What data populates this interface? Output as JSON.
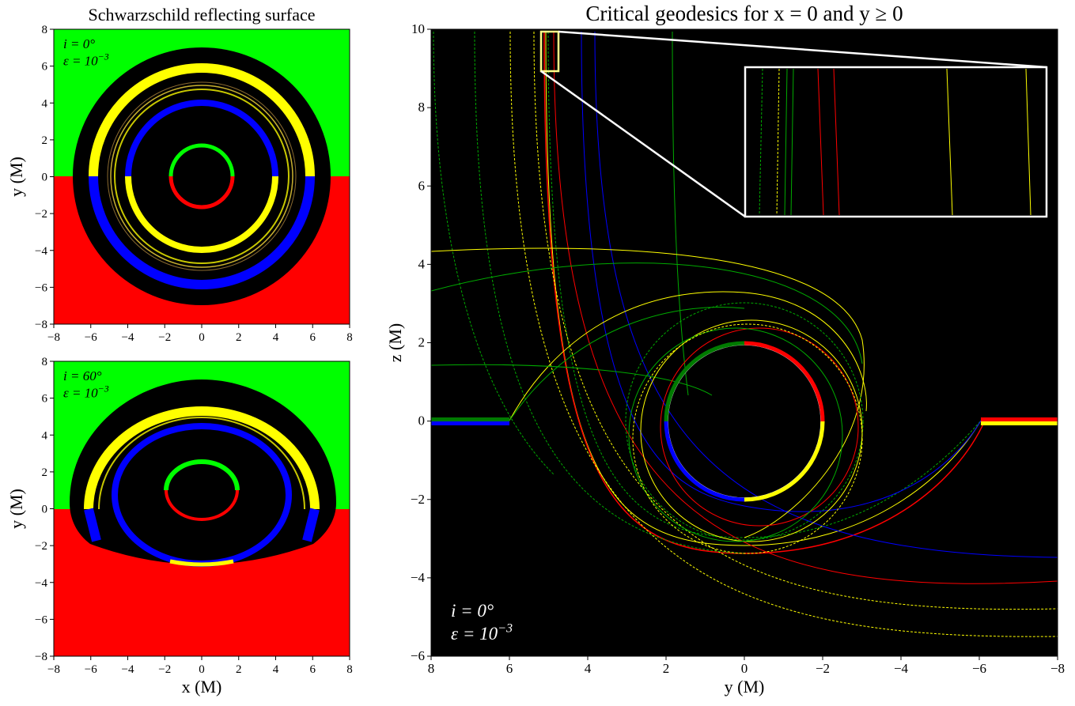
{
  "chart_data": [
    {
      "type": "shadow-map",
      "title": "Schwarzschild reflecting surface",
      "ylabel": "y (M)",
      "inclination": "i = 0°",
      "epsilon": "ε = 10",
      "epsilon_exponent": "−3",
      "xlim": [
        -8,
        8
      ],
      "ylim": [
        -8,
        8
      ],
      "xticks": [
        {
          "value": -8,
          "label": "−8"
        },
        {
          "value": -6,
          "label": "−6"
        },
        {
          "value": -4,
          "label": "−4"
        },
        {
          "value": -2,
          "label": "−2"
        },
        0,
        2,
        4,
        6,
        8
      ],
      "yticks": [
        {
          "value": -8,
          "label": "−8"
        },
        {
          "value": -6,
          "label": "−6"
        },
        {
          "value": -4,
          "label": "−4"
        },
        {
          "value": -2,
          "label": "−2"
        },
        0,
        2,
        4,
        6,
        8
      ]
    },
    {
      "type": "shadow-map",
      "xlabel": "x (M)",
      "ylabel": "y (M)",
      "inclination": "i = 60°",
      "epsilon": "ε = 10",
      "epsilon_exponent": "−3",
      "xlim": [
        -8,
        8
      ],
      "ylim": [
        -8,
        8
      ],
      "xticks": [
        {
          "value": -8,
          "label": "−8"
        },
        {
          "value": -6,
          "label": "−6"
        },
        {
          "value": -4,
          "label": "−4"
        },
        {
          "value": -2,
          "label": "−2"
        },
        0,
        2,
        4,
        6,
        8
      ],
      "yticks": [
        {
          "value": -8,
          "label": "−8"
        },
        {
          "value": -6,
          "label": "−6"
        },
        {
          "value": -4,
          "label": "−4"
        },
        {
          "value": -2,
          "label": "−2"
        },
        0,
        2,
        4,
        6,
        8
      ]
    },
    {
      "type": "geodesics",
      "title": "Critical geodesics for x = 0 and y ≥ 0",
      "xlabel": "y (M)",
      "ylabel": "z (M)",
      "inclination": "i = 0°",
      "epsilon": "ε = 10",
      "epsilon_exponent": "−3",
      "xlim": [
        8,
        -8
      ],
      "ylim": [
        -6,
        10
      ],
      "xticks": [
        8,
        6,
        4,
        2,
        0,
        {
          "value": -2,
          "label": "−2"
        },
        {
          "value": -4,
          "label": "−4"
        },
        {
          "value": -6,
          "label": "−6"
        },
        {
          "value": -8,
          "label": "−8"
        }
      ],
      "yticks": [
        {
          "value": -6,
          "label": "−6"
        },
        {
          "value": -4,
          "label": "−4"
        },
        {
          "value": -2,
          "label": "−2"
        },
        0,
        2,
        4,
        6,
        8,
        10
      ]
    }
  ]
}
